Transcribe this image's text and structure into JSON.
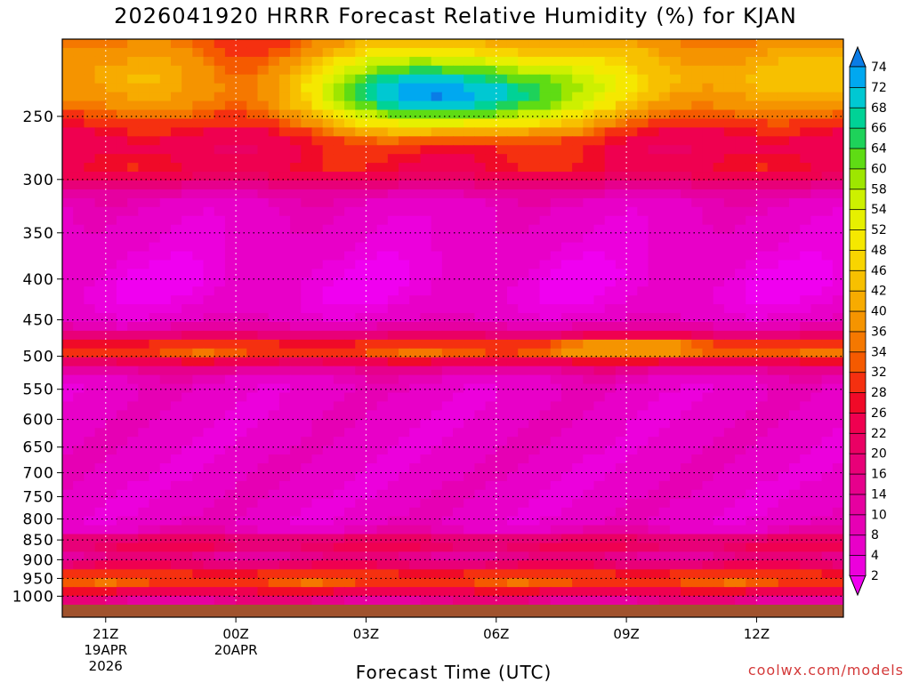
{
  "chart_data": {
    "type": "heatmap",
    "title": "2026041920 HRRR Forecast Relative Humidity (%) for KJAN",
    "xlabel": "Forecast Time (UTC)",
    "ylabel": "",
    "x_ticks": [
      {
        "label": "21Z",
        "sub": [
          "19APR",
          "2026"
        ],
        "hour": 1
      },
      {
        "label": "00Z",
        "sub": [
          "20APR"
        ],
        "hour": 4
      },
      {
        "label": "03Z",
        "sub": [],
        "hour": 7
      },
      {
        "label": "06Z",
        "sub": [],
        "hour": 10
      },
      {
        "label": "09Z",
        "sub": [],
        "hour": 13
      },
      {
        "label": "12Z",
        "sub": [],
        "hour": 16
      }
    ],
    "x_range_hours": [
      0,
      18
    ],
    "y_axis": "pressure (hPa), log scale, reversed",
    "y_ticks": [
      250,
      300,
      350,
      400,
      450,
      500,
      550,
      600,
      650,
      700,
      750,
      800,
      850,
      900,
      950,
      1000
    ],
    "y_range": [
      200,
      1025
    ],
    "grid": true,
    "colorbar": {
      "levels": [
        2,
        4,
        8,
        10,
        14,
        16,
        20,
        22,
        26,
        28,
        32,
        34,
        36,
        40,
        42,
        46,
        48,
        52,
        54,
        58,
        60,
        64,
        66,
        68,
        72,
        74
      ],
      "colors": [
        "#f000f0",
        "#ec00dc",
        "#e800c8",
        "#e600b4",
        "#e600a0",
        "#e6008c",
        "#e80078",
        "#ea0064",
        "#ef0050",
        "#f00a28",
        "#f53010",
        "#f55a00",
        "#f57800",
        "#f59400",
        "#f7ab00",
        "#f7c000",
        "#f8d500",
        "#f5e800",
        "#e6f000",
        "#cdf000",
        "#9ee600",
        "#5fdc14",
        "#1ed25a",
        "#00d296",
        "#00c8d2",
        "#00a8f0",
        "#0a7ce6"
      ]
    },
    "surface_band_color": "#a0522d",
    "rh_profile_summary": [
      {
        "pressure": 225,
        "rh_typical": 42,
        "note": "moist layer 200-300 hPa; maximum ~74% near 03Z-07Z around 240 hPa"
      },
      {
        "pressure": 300,
        "rh_typical": 26
      },
      {
        "pressure": 400,
        "rh_typical": 6
      },
      {
        "pressure": 490,
        "rh_typical": 30
      },
      {
        "pressure": 650,
        "rh_typical": 5
      },
      {
        "pressure": 850,
        "rh_typical": 20
      },
      {
        "pressure": 950,
        "rh_typical": 40
      }
    ]
  },
  "credit": "coolwx.com/models"
}
